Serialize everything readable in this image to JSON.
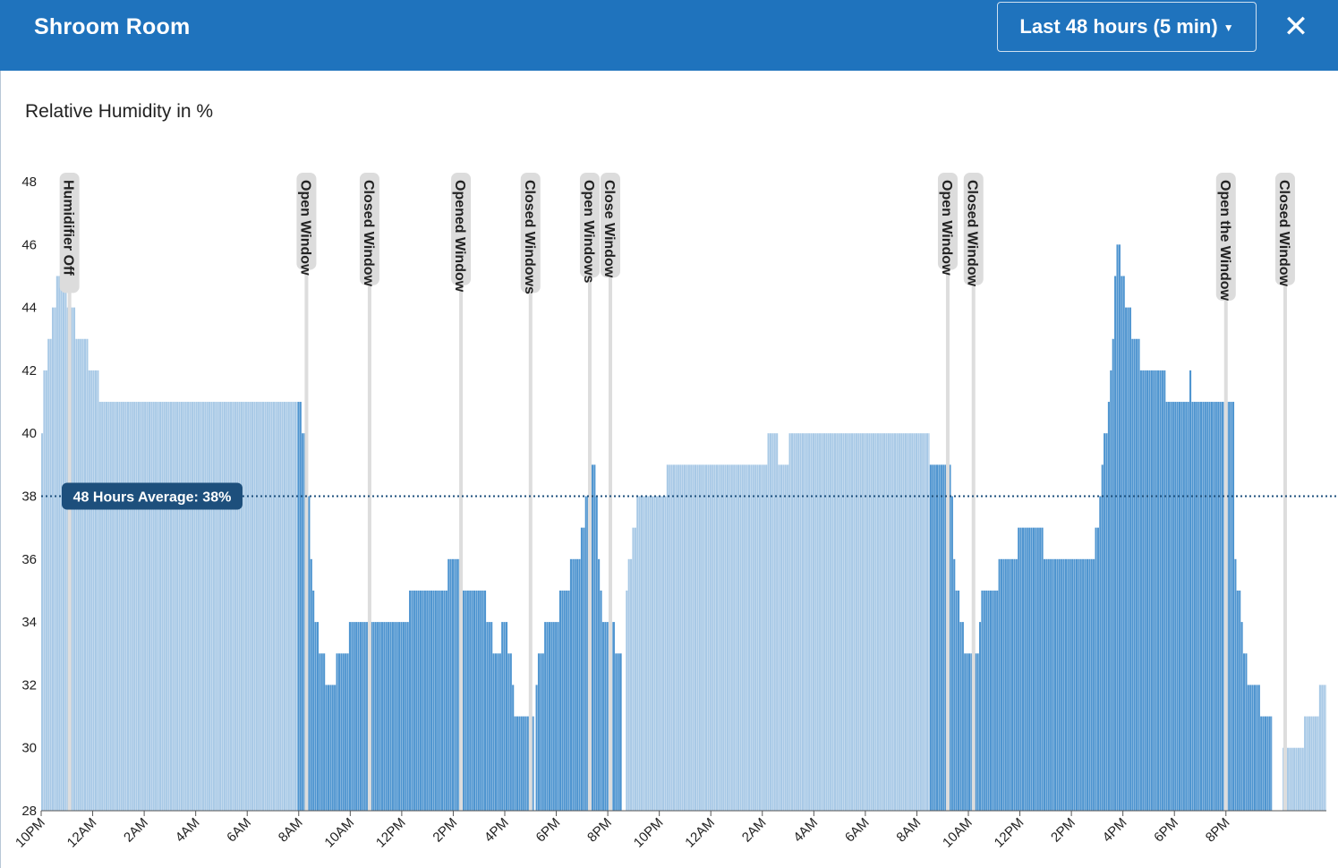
{
  "header": {
    "title": "Shroom Room",
    "range_label": "Last 48 hours (5 min)",
    "close_glyph": "✕"
  },
  "colors": {
    "header_bg": "#1f73bd",
    "light_bar": "#a8c9e6",
    "dark_bar": "#4f95d0",
    "avg_line": "#1d4f7c",
    "avg_badge": "#1d4f7c",
    "event_line": "#dddddd"
  },
  "chart_data": {
    "type": "bar",
    "title": "Relative Humidity in %",
    "ylim": [
      28,
      48
    ],
    "yticks": [
      28,
      30,
      32,
      34,
      36,
      38,
      40,
      42,
      44,
      46,
      48
    ],
    "xticks": [
      "10PM",
      "12AM",
      "2AM",
      "4AM",
      "6AM",
      "8AM",
      "10AM",
      "12PM",
      "2PM",
      "4PM",
      "6PM",
      "8PM",
      "10PM",
      "12AM",
      "2AM",
      "4AM",
      "6AM",
      "8AM",
      "10AM",
      "12PM",
      "2PM",
      "4PM",
      "6PM",
      "8PM"
    ],
    "average": {
      "value": 38,
      "label": "48 Hours Average: 38%"
    },
    "series": [
      {
        "style": "light",
        "points": [
          [
            22.0,
            39
          ],
          [
            22.05,
            40
          ],
          [
            22.15,
            42
          ],
          [
            22.3,
            43
          ],
          [
            22.45,
            44
          ],
          [
            22.65,
            45
          ],
          [
            22.95,
            45
          ],
          [
            23.05,
            44
          ],
          [
            23.2,
            44
          ],
          [
            23.4,
            43
          ],
          [
            23.75,
            43
          ],
          [
            23.85,
            42
          ],
          [
            24.1,
            42
          ],
          [
            24.35,
            41
          ],
          [
            31.95,
            41
          ]
        ]
      },
      {
        "style": "light",
        "points": [
          [
            44.7,
            35
          ],
          [
            44.85,
            36
          ],
          [
            45.0,
            37
          ],
          [
            45.2,
            38
          ],
          [
            45.5,
            38
          ],
          [
            45.6,
            37.5
          ],
          [
            45.75,
            38
          ],
          [
            45.85,
            38
          ],
          [
            46.0,
            38.5
          ],
          [
            46.2,
            38
          ],
          [
            46.4,
            39
          ],
          [
            46.6,
            39
          ],
          [
            47.0,
            39
          ],
          [
            48.0,
            39
          ],
          [
            50.0,
            39
          ],
          [
            50.4,
            40
          ],
          [
            50.9,
            39
          ],
          [
            51.1,
            40
          ],
          [
            52.0,
            40
          ],
          [
            54.0,
            40
          ],
          [
            56.0,
            40
          ],
          [
            56.5,
            40
          ]
        ]
      },
      {
        "style": "light",
        "points": [
          [
            70.2,
            30
          ],
          [
            71.0,
            30
          ],
          [
            71.1,
            31
          ],
          [
            71.5,
            31
          ],
          [
            71.7,
            32
          ],
          [
            71.9,
            32
          ]
        ]
      },
      {
        "style": "dark",
        "points": [
          [
            31.95,
            41
          ],
          [
            32.1,
            41
          ],
          [
            32.2,
            40
          ],
          [
            32.35,
            40
          ],
          [
            32.45,
            36
          ],
          [
            32.55,
            35
          ],
          [
            32.7,
            34
          ],
          [
            32.9,
            33
          ],
          [
            33.1,
            32
          ],
          [
            33.4,
            32
          ],
          [
            33.55,
            33
          ],
          [
            33.9,
            33
          ],
          [
            34.0,
            34
          ],
          [
            35.0,
            34
          ],
          [
            35.15,
            34
          ],
          [
            36.2,
            34
          ],
          [
            36.3,
            35
          ],
          [
            37.7,
            35
          ],
          [
            37.85,
            36
          ],
          [
            38.3,
            36
          ],
          [
            38.4,
            35
          ],
          [
            39.2,
            35
          ],
          [
            39.35,
            34
          ],
          [
            39.8,
            33
          ],
          [
            40.0,
            34
          ],
          [
            40.1,
            34
          ],
          [
            40.2,
            33
          ],
          [
            40.45,
            31
          ],
          [
            41.15,
            31
          ]
        ]
      },
      {
        "style": "dark",
        "points": [
          [
            41.2,
            32
          ],
          [
            41.4,
            33
          ],
          [
            41.6,
            34
          ],
          [
            42.0,
            34
          ],
          [
            42.2,
            35
          ],
          [
            42.45,
            35
          ],
          [
            42.6,
            36
          ],
          [
            42.9,
            36
          ],
          [
            43.0,
            37
          ],
          [
            43.2,
            38
          ],
          [
            43.4,
            38.5
          ],
          [
            43.5,
            39
          ],
          [
            43.6,
            38
          ],
          [
            43.7,
            35
          ],
          [
            43.85,
            34
          ],
          [
            44.2,
            34
          ],
          [
            44.35,
            33
          ],
          [
            44.55,
            33
          ]
        ]
      },
      {
        "style": "dark",
        "points": [
          [
            56.5,
            39
          ],
          [
            57.35,
            39
          ],
          [
            57.45,
            36
          ],
          [
            57.6,
            35
          ],
          [
            57.75,
            34
          ],
          [
            58.0,
            33
          ],
          [
            58.3,
            33
          ],
          [
            58.4,
            33
          ],
          [
            58.5,
            35
          ],
          [
            59.0,
            35
          ],
          [
            59.3,
            36
          ],
          [
            59.7,
            36
          ],
          [
            59.8,
            36
          ],
          [
            60.1,
            37
          ],
          [
            60.9,
            37
          ],
          [
            61.0,
            36
          ],
          [
            62.9,
            36
          ],
          [
            63.0,
            37
          ],
          [
            63.15,
            38
          ],
          [
            63.3,
            40
          ],
          [
            63.5,
            41
          ],
          [
            63.6,
            43
          ],
          [
            63.8,
            46
          ],
          [
            64.0,
            45
          ],
          [
            64.2,
            44
          ],
          [
            64.45,
            43
          ],
          [
            64.6,
            43
          ],
          [
            64.8,
            42
          ],
          [
            65.6,
            42
          ],
          [
            65.75,
            41
          ],
          [
            66.5,
            41
          ],
          [
            66.6,
            42
          ],
          [
            66.8,
            41
          ],
          [
            68.2,
            41
          ],
          [
            68.3,
            41
          ],
          [
            68.35,
            36
          ],
          [
            68.5,
            35
          ],
          [
            68.6,
            34
          ],
          [
            68.75,
            33
          ],
          [
            68.9,
            32
          ],
          [
            69.2,
            32
          ],
          [
            69.4,
            31
          ],
          [
            69.8,
            31
          ]
        ]
      }
    ],
    "events": [
      {
        "x": 23.1,
        "label": "Humidifier Off"
      },
      {
        "x": 32.3,
        "label": "Open Window"
      },
      {
        "x": 34.75,
        "label": "Closed Window"
      },
      {
        "x": 38.3,
        "label": "Opened Window"
      },
      {
        "x": 41.0,
        "label": "Closed Windows"
      },
      {
        "x": 43.3,
        "label": "Open Windows"
      },
      {
        "x": 44.1,
        "label": "Close Window"
      },
      {
        "x": 57.2,
        "label": "Open Window"
      },
      {
        "x": 58.2,
        "label": "Closed Window"
      },
      {
        "x": 68.0,
        "label": "Open the Window"
      },
      {
        "x": 70.3,
        "label": "Closed Window"
      }
    ]
  }
}
